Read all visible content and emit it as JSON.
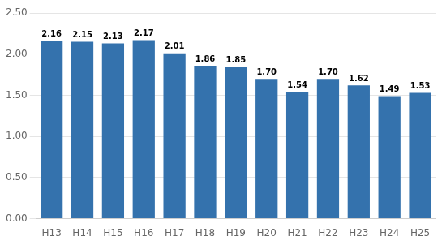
{
  "chart_data": {
    "type": "bar",
    "categories": [
      "H13",
      "H14",
      "H15",
      "H16",
      "H17",
      "H18",
      "H19",
      "H20",
      "H21",
      "H22",
      "H23",
      "H24",
      "H25"
    ],
    "values": [
      2.16,
      2.15,
      2.13,
      2.17,
      2.01,
      1.86,
      1.85,
      1.7,
      1.54,
      1.7,
      1.62,
      1.49,
      1.53
    ],
    "value_labels": [
      "2.16",
      "2.15",
      "2.13",
      "2.17",
      "2.01",
      "1.86",
      "1.85",
      "1.70",
      "1.54",
      "1.70",
      "1.62",
      "1.49",
      "1.53"
    ],
    "data_labels": true,
    "color": "#3472AD",
    "ylim": [
      0,
      2.5
    ],
    "yticks": [
      {
        "value": 0.0,
        "label": "0.00"
      },
      {
        "value": 0.5,
        "label": "0.50"
      },
      {
        "value": 1.0,
        "label": "1.00"
      },
      {
        "value": 1.5,
        "label": "1.50"
      },
      {
        "value": 2.0,
        "label": "2.00"
      },
      {
        "value": 2.5,
        "label": "2.50"
      }
    ],
    "grid": true
  }
}
